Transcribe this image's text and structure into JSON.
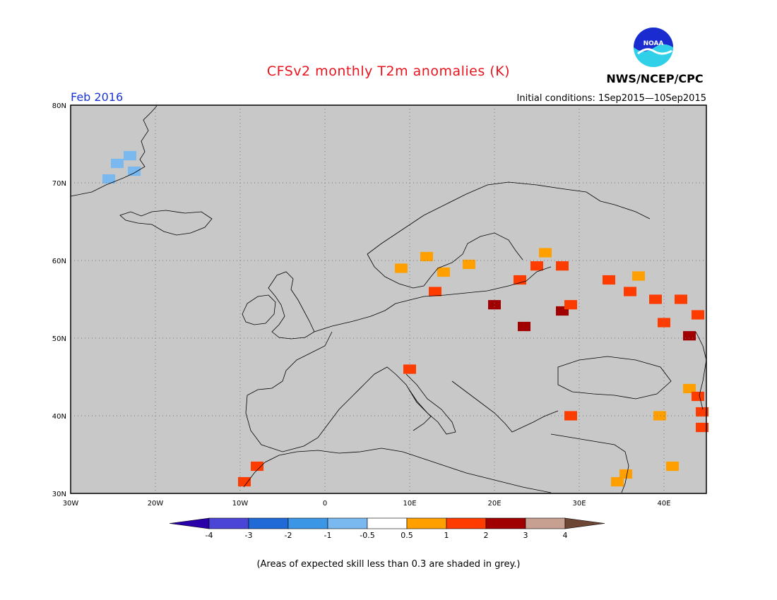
{
  "header": {
    "title": "CFSv2 monthly T2m anomalies (K)",
    "agency": "NWS/NCEP/CPC",
    "logo_text": "NOAA",
    "month": "Feb 2016",
    "initial_conditions": "Initial conditions: 1Sep2015—10Sep2015"
  },
  "map": {
    "lon_range": [
      -30,
      45
    ],
    "lat_range": [
      30,
      80
    ],
    "lat_ticks": [
      "30N",
      "40N",
      "50N",
      "60N",
      "70N",
      "80N"
    ],
    "lon_ticks": [
      "30W",
      "20W",
      "10W",
      "0",
      "10E",
      "20E",
      "30E",
      "40E"
    ],
    "background_color": "#c8c8c8",
    "grid": "dotted",
    "anomaly_cells": [
      {
        "lon": 33.5,
        "lat": 57.5,
        "value": 1.5
      },
      {
        "lon": 36,
        "lat": 56,
        "value": 1.5
      },
      {
        "lon": 39,
        "lat": 55,
        "value": 1.5
      },
      {
        "lon": 42,
        "lat": 55,
        "value": 1.5
      },
      {
        "lon": 44,
        "lat": 53,
        "value": 1.5
      },
      {
        "lon": 40,
        "lat": 52,
        "value": 1.5
      },
      {
        "lon": 37,
        "lat": 58,
        "value": 0.75
      },
      {
        "lon": 43,
        "lat": 50.3,
        "value": 2.5
      },
      {
        "lon": 14,
        "lat": 58.5,
        "value": 0.75
      },
      {
        "lon": 12,
        "lat": 60.5,
        "value": 0.75
      },
      {
        "lon": 17,
        "lat": 59.5,
        "value": 0.75
      },
      {
        "lon": 26,
        "lat": 61,
        "value": 0.75
      },
      {
        "lon": 9,
        "lat": 59,
        "value": 0.75
      },
      {
        "lon": 25,
        "lat": 59.3,
        "value": 1.5
      },
      {
        "lon": 28,
        "lat": 59.3,
        "value": 1.5
      },
      {
        "lon": 13,
        "lat": 56,
        "value": 1.5
      },
      {
        "lon": 10,
        "lat": 46,
        "value": 1.5
      },
      {
        "lon": 20,
        "lat": 54.3,
        "value": 2.5
      },
      {
        "lon": 23.5,
        "lat": 51.5,
        "value": 2.5
      },
      {
        "lon": 28,
        "lat": 53.5,
        "value": 2.5
      },
      {
        "lon": 29,
        "lat": 54.3,
        "value": 1.5
      },
      {
        "lon": 23,
        "lat": 57.5,
        "value": 1.5
      },
      {
        "lon": 29,
        "lat": 40,
        "value": 1.5
      },
      {
        "lon": 39.5,
        "lat": 40,
        "value": 0.75
      },
      {
        "lon": 43,
        "lat": 43.5,
        "value": 0.75
      },
      {
        "lon": 44,
        "lat": 42.5,
        "value": 1.5
      },
      {
        "lon": 44.5,
        "lat": 40.5,
        "value": 1.5
      },
      {
        "lon": 44.5,
        "lat": 38.5,
        "value": 1.5
      },
      {
        "lon": 41,
        "lat": 33.5,
        "value": 0.75
      },
      {
        "lon": 35.5,
        "lat": 32.5,
        "value": 0.75
      },
      {
        "lon": 34.5,
        "lat": 31.5,
        "value": 0.75
      },
      {
        "lon": -8,
        "lat": 33.5,
        "value": 1.5
      },
      {
        "lon": -9.5,
        "lat": 31.5,
        "value": 1.5
      },
      {
        "lon": -25.5,
        "lat": 70.5,
        "value": -0.75
      },
      {
        "lon": -24.5,
        "lat": 72.5,
        "value": -0.75
      },
      {
        "lon": -22.5,
        "lat": 71.5,
        "value": -0.75
      },
      {
        "lon": -23,
        "lat": 73.5,
        "value": -0.75
      }
    ]
  },
  "colorbar": {
    "boundaries": [
      "-4",
      "-3",
      "-2",
      "-1",
      "-0.5",
      "0.5",
      "1",
      "2",
      "3",
      "4"
    ],
    "colors": [
      "#2a00a8",
      "#4a45d6",
      "#1f6ad6",
      "#3c96e6",
      "#7ab8f0",
      "#ffffff",
      "#ffa000",
      "#ff3c00",
      "#a00000",
      "#c8a092",
      "#6e4636"
    ]
  },
  "footnote": "(Areas of expected skill less than 0.3 are shaded in grey.)"
}
